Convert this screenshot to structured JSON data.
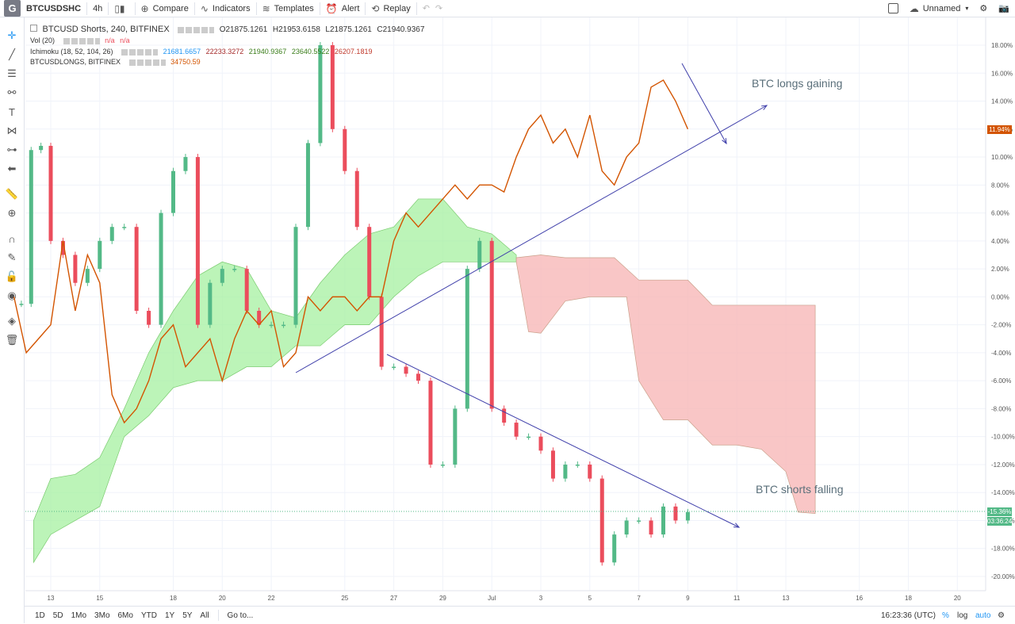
{
  "topbar": {
    "logo": "G",
    "symbol": "BTCUSDSHC",
    "interval": "4h",
    "compare": "Compare",
    "indicators": "Indicators",
    "templates": "Templates",
    "alert": "Alert",
    "replay": "Replay",
    "layout_name": "Unnamed"
  },
  "legend": {
    "title": "BTCUSD Shorts, 240, BITFINEX",
    "o": "O21875.1261",
    "h": "H21953.6158",
    "l": "L21875.1261",
    "c": "C21940.9367",
    "vol": "Vol (20)",
    "vol_vals": [
      "n/a",
      "n/a"
    ],
    "ichimoku": "Ichimoku (18, 52, 104, 26)",
    "ichi_vals": [
      "21681.6657",
      "22233.3272",
      "21940.9367",
      "23640.5522",
      "26207.1819"
    ],
    "longs": "BTCUSDLONGS, BITFINEX",
    "longs_val": "34750.59"
  },
  "annotations": {
    "longs_text": "BTC longs gaining",
    "shorts_text": "BTC shorts falling"
  },
  "price_labels": {
    "longs_current": "11.94%",
    "shorts_current": "-15.36%",
    "countdown": "03:36:24"
  },
  "bottombar": {
    "ranges": [
      "1D",
      "5D",
      "1Mo",
      "3Mo",
      "6Mo",
      "YTD",
      "1Y",
      "5Y",
      "All"
    ],
    "goto": "Go to...",
    "time": "16:23:36 (UTC)",
    "pct": "%",
    "log": "log",
    "auto": "auto"
  },
  "colors": {
    "up": "#53b987",
    "down": "#eb4d5c",
    "longs_line": "#d35400",
    "cloud_bull": "#a5f0a0",
    "cloud_bear": "#f8b8b8",
    "trendline": "#3f3faa"
  },
  "icons": [
    "cross-icon",
    "trend-line-icon",
    "fib-icon",
    "brush-icon",
    "text-icon",
    "pattern-icon",
    "prediction-icon",
    "back-arrow-icon",
    "ruler-icon",
    "zoom-icon",
    "magnet-icon",
    "lock-draw-icon",
    "unlock-icon",
    "eye-icon",
    "layers-icon",
    "trash-icon"
  ],
  "chart_data": {
    "type": "candlestick",
    "y_axis_unit": "%",
    "y_ticks": [
      "18.00%",
      "16.00%",
      "14.00%",
      "12.00%",
      "10.00%",
      "8.00%",
      "6.00%",
      "4.00%",
      "2.00%",
      "0.00%",
      "-2.00%",
      "-4.00%",
      "-6.00%",
      "-8.00%",
      "-10.00%",
      "-12.00%",
      "-14.00%",
      "-16.00%",
      "-18.00%",
      "-20.00%"
    ],
    "ylim": [
      -21,
      19
    ],
    "x_ticks": [
      "13",
      "15",
      "18",
      "20",
      "22",
      "25",
      "27",
      "29",
      "Jul",
      "3",
      "5",
      "7",
      "9",
      "11",
      "13",
      "16",
      "18",
      "20"
    ],
    "x_tick_days": [
      13,
      15,
      18,
      20,
      22,
      25,
      27,
      29,
      31,
      33,
      35,
      37,
      39,
      41,
      43,
      46,
      48,
      50
    ],
    "shorts_candles_day_close": [
      [
        11.8,
        -0.5
      ],
      [
        12.2,
        10.5
      ],
      [
        12.6,
        10.8
      ],
      [
        13.0,
        4
      ],
      [
        13.5,
        3
      ],
      [
        14,
        1
      ],
      [
        14.5,
        2
      ],
      [
        15,
        4
      ],
      [
        15.5,
        5
      ],
      [
        16,
        5
      ],
      [
        16.5,
        -1
      ],
      [
        17,
        -2
      ],
      [
        17.5,
        6
      ],
      [
        18,
        9
      ],
      [
        18.5,
        10
      ],
      [
        19,
        -2
      ],
      [
        19.5,
        1
      ],
      [
        20,
        2
      ],
      [
        20.5,
        2
      ],
      [
        21,
        -1
      ],
      [
        21.5,
        -2
      ],
      [
        22,
        -2
      ],
      [
        22.5,
        -2
      ],
      [
        23,
        5
      ],
      [
        23.5,
        11
      ],
      [
        24,
        18
      ],
      [
        24.5,
        12
      ],
      [
        25,
        9
      ],
      [
        25.5,
        5
      ],
      [
        26,
        0
      ],
      [
        26.5,
        -5
      ],
      [
        27,
        -5
      ],
      [
        27.5,
        -5.5
      ],
      [
        28,
        -6
      ],
      [
        28.5,
        -12
      ],
      [
        29,
        -12
      ],
      [
        29.5,
        -8
      ],
      [
        30,
        2
      ],
      [
        30.5,
        4
      ],
      [
        31,
        -8
      ],
      [
        31.5,
        -9
      ],
      [
        32,
        -10
      ],
      [
        32.5,
        -10
      ],
      [
        33,
        -11
      ],
      [
        33.5,
        -13
      ],
      [
        34,
        -12
      ],
      [
        34.5,
        -12
      ],
      [
        35,
        -13
      ],
      [
        35.5,
        -19
      ],
      [
        36,
        -17
      ],
      [
        36.5,
        -16
      ],
      [
        37,
        -16
      ],
      [
        37.5,
        -17
      ],
      [
        38,
        -15
      ],
      [
        38.5,
        -16
      ],
      [
        39,
        -15.4
      ]
    ],
    "longs_line": [
      [
        11.5,
        0
      ],
      [
        12,
        -4
      ],
      [
        12.5,
        -3
      ],
      [
        13,
        -2
      ],
      [
        13.5,
        4
      ],
      [
        14,
        -1
      ],
      [
        14.5,
        3
      ],
      [
        15,
        1
      ],
      [
        15.5,
        -7
      ],
      [
        16,
        -9
      ],
      [
        16.5,
        -8
      ],
      [
        17,
        -6
      ],
      [
        17.5,
        -3
      ],
      [
        18,
        -2
      ],
      [
        18.5,
        -5
      ],
      [
        19,
        -4
      ],
      [
        19.5,
        -3
      ],
      [
        20,
        -6
      ],
      [
        20.5,
        -3
      ],
      [
        21,
        -1
      ],
      [
        21.5,
        -2
      ],
      [
        22,
        -1
      ],
      [
        22.5,
        -5
      ],
      [
        23,
        -4
      ],
      [
        23.5,
        0
      ],
      [
        24,
        -1
      ],
      [
        24.5,
        0
      ],
      [
        25,
        0
      ],
      [
        25.5,
        -1
      ],
      [
        26,
        0
      ],
      [
        26.5,
        0
      ],
      [
        27,
        4
      ],
      [
        27.5,
        6
      ],
      [
        28,
        5
      ],
      [
        28.5,
        6
      ],
      [
        29,
        7
      ],
      [
        29.5,
        8
      ],
      [
        30,
        7
      ],
      [
        30.5,
        8
      ],
      [
        31,
        8
      ],
      [
        31.5,
        7.5
      ],
      [
        32,
        10
      ],
      [
        32.5,
        12
      ],
      [
        33,
        13
      ],
      [
        33.5,
        11
      ],
      [
        34,
        12
      ],
      [
        34.5,
        10
      ],
      [
        35,
        13
      ],
      [
        35.5,
        9
      ],
      [
        36,
        8
      ],
      [
        36.5,
        10
      ],
      [
        37,
        11
      ],
      [
        37.5,
        15
      ],
      [
        38,
        15.5
      ],
      [
        38.5,
        14
      ],
      [
        39,
        12
      ]
    ]
  }
}
